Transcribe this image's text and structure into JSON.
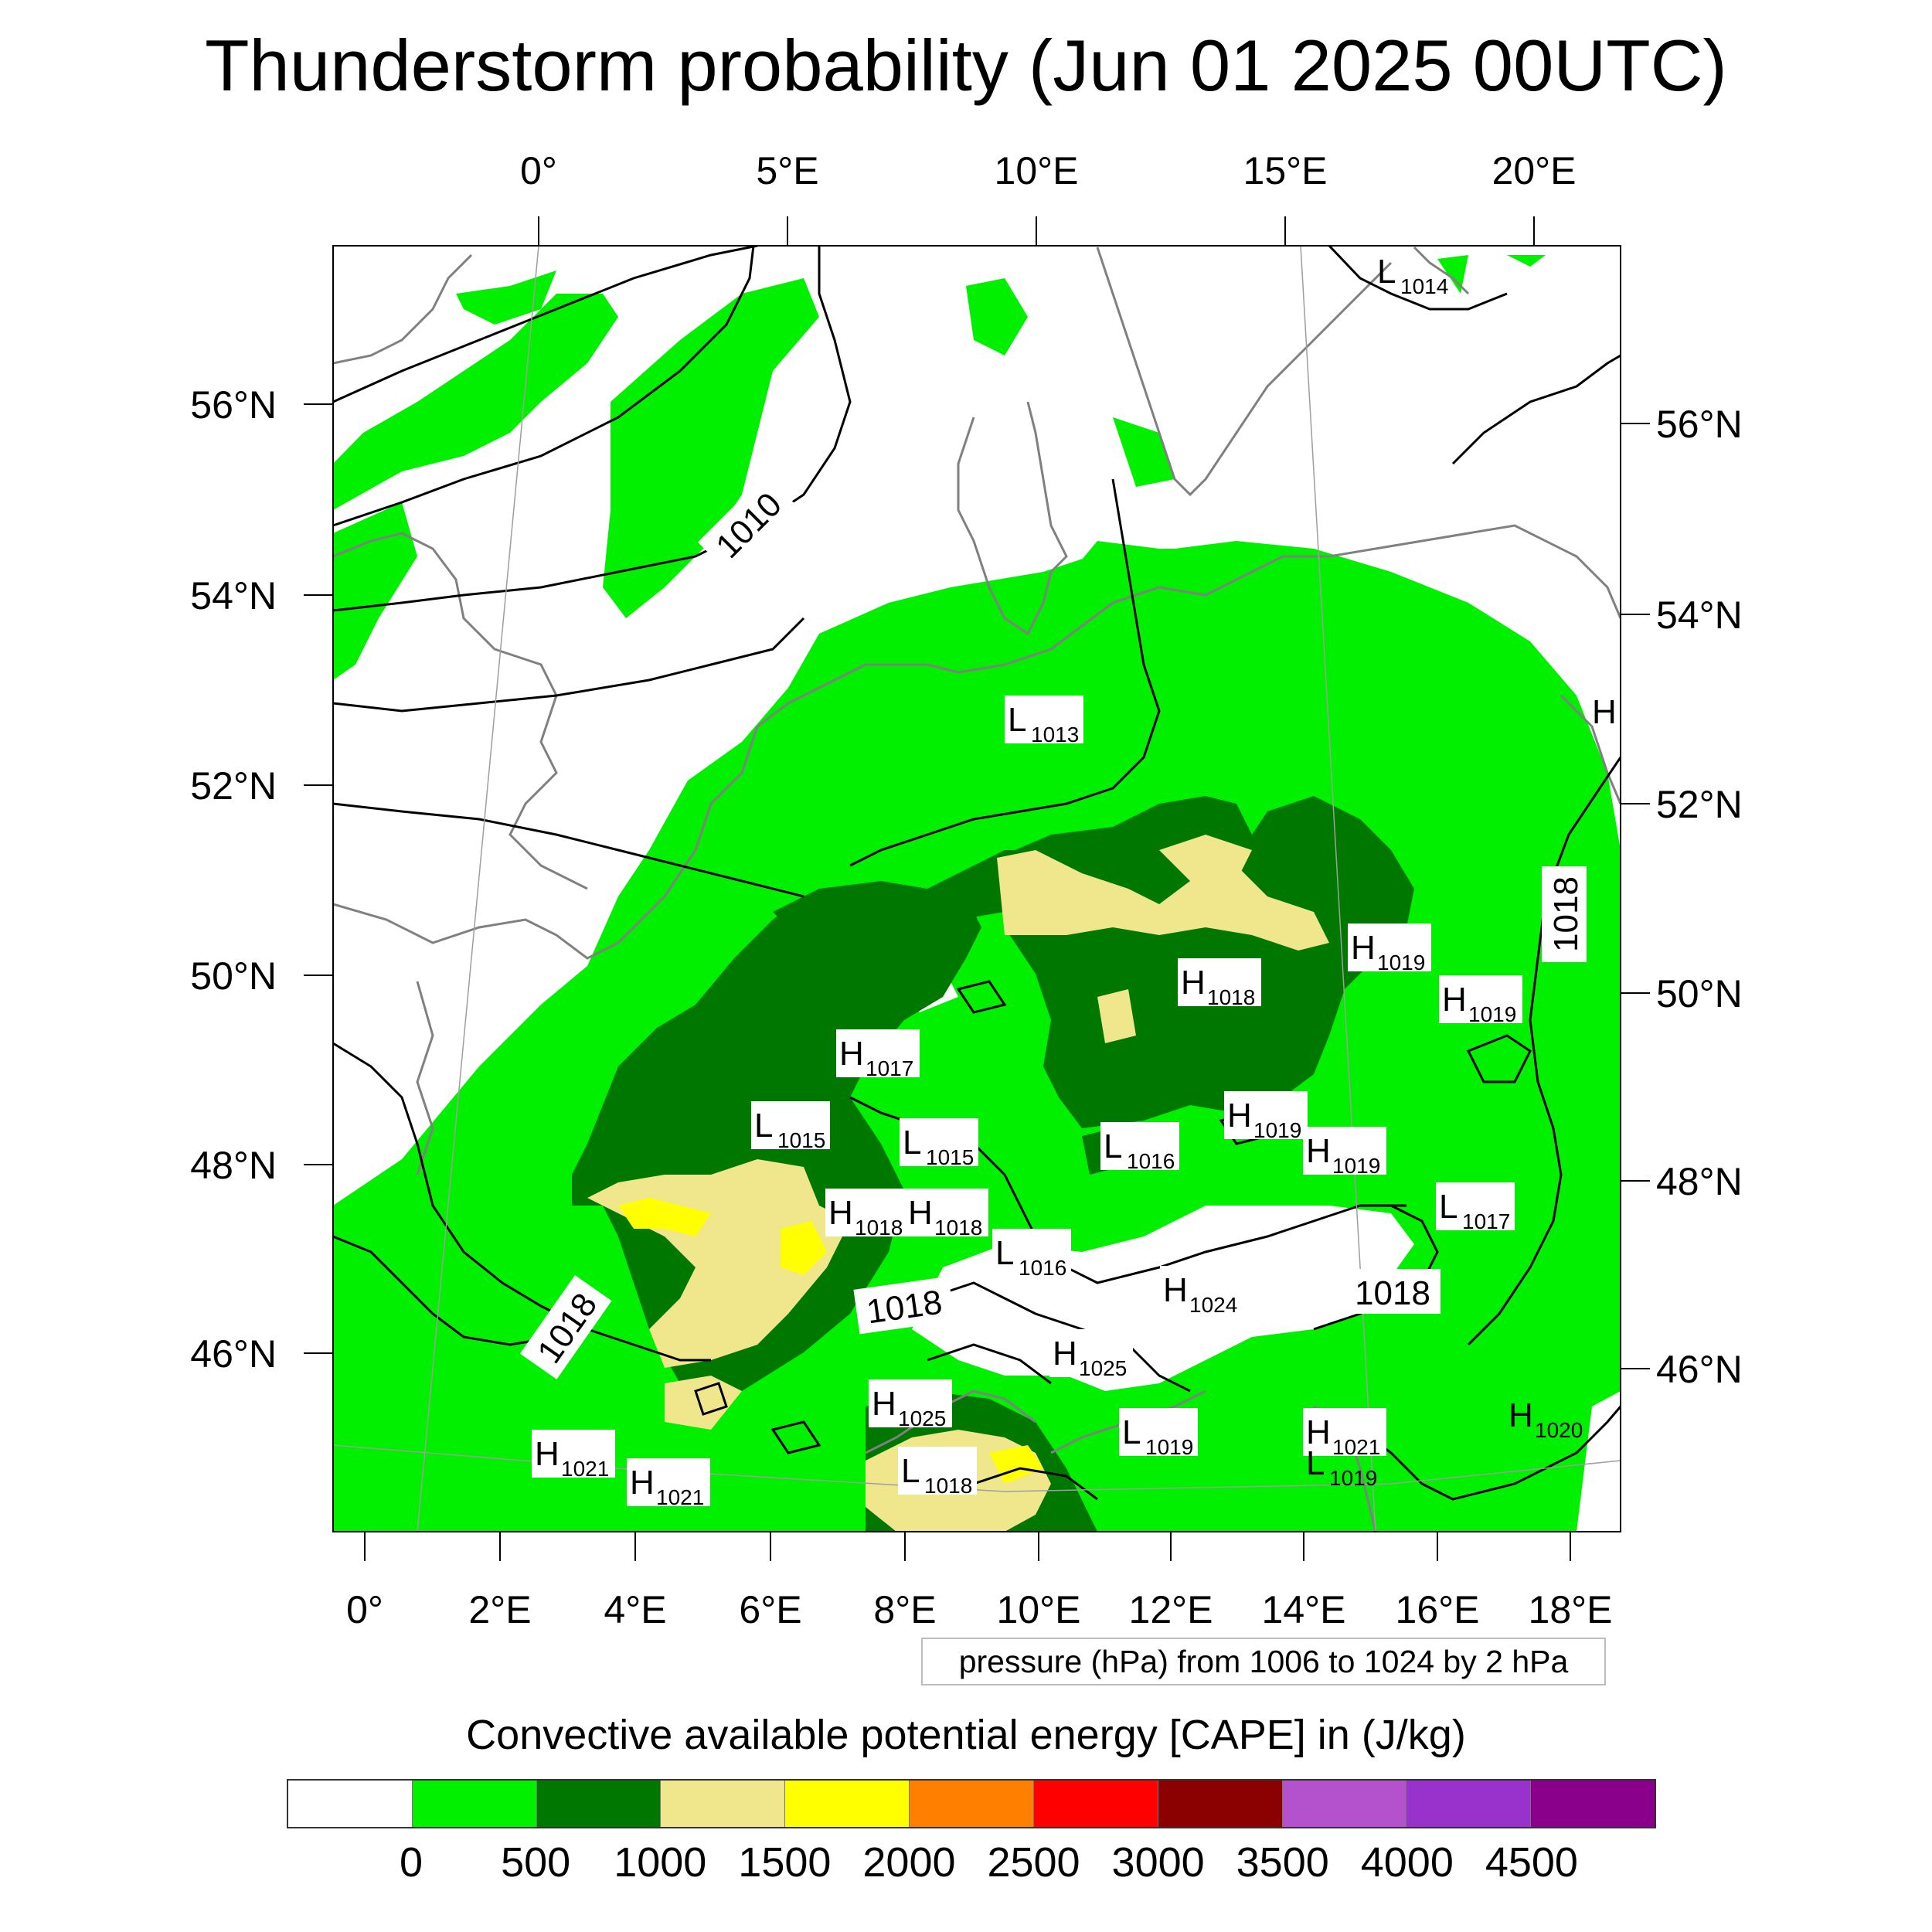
{
  "title": "Thunderstorm probability (Jun 01 2025 00UTC)",
  "map": {
    "top_lon_labels": [
      "0°",
      "5°E",
      "10°E",
      "15°E",
      "20°E"
    ],
    "bottom_lon_labels": [
      "0°",
      "2°E",
      "4°E",
      "6°E",
      "8°E",
      "10°E",
      "12°E",
      "14°E",
      "16°E",
      "18°E"
    ],
    "left_lat_labels": [
      "56°N",
      "54°N",
      "52°N",
      "50°N",
      "48°N",
      "46°N"
    ],
    "right_lat_labels": [
      "56°N",
      "54°N",
      "52°N",
      "50°N",
      "48°N",
      "46°N"
    ],
    "isobar_labels": [
      "1010",
      "1018",
      "1018",
      "1018",
      "1018"
    ],
    "pressure_centers": [
      {
        "type": "L",
        "value": "1014"
      },
      {
        "type": "L",
        "value": "1013"
      },
      {
        "type": "H",
        "value": "1019"
      },
      {
        "type": "H",
        "value": "1018"
      },
      {
        "type": "H",
        "value": "1019"
      },
      {
        "type": "H",
        "value": "1017"
      },
      {
        "type": "L",
        "value": "1015"
      },
      {
        "type": "L",
        "value": "1015"
      },
      {
        "type": "L",
        "value": "1016"
      },
      {
        "type": "H",
        "value": "1019"
      },
      {
        "type": "H",
        "value": "1019"
      },
      {
        "type": "H",
        "value": "1018"
      },
      {
        "type": "H",
        "value": "1018"
      },
      {
        "type": "L",
        "value": "1016"
      },
      {
        "type": "L",
        "value": "1017"
      },
      {
        "type": "H",
        "value": "1024"
      },
      {
        "type": "H",
        "value": "1025"
      },
      {
        "type": "H",
        "value": "1025"
      },
      {
        "type": "L",
        "value": "1019"
      },
      {
        "type": "H",
        "value": "1021"
      },
      {
        "type": "L",
        "value": "1019"
      },
      {
        "type": "L",
        "value": "1018"
      },
      {
        "type": "H",
        "value": "1021"
      },
      {
        "type": "H",
        "value": "1021"
      },
      {
        "type": "H",
        "value": "1020"
      },
      {
        "type": "H",
        "value": ""
      }
    ],
    "colors": {
      "cape_0_500": "#00f000",
      "cape_500_1000": "#007800",
      "cape_1000_1500": "#f0e68c",
      "cape_1500_2000": "#ffff00",
      "isobar": "#000000",
      "coastline": "#808080"
    }
  },
  "contour_note": "pressure (hPa) from 1006 to 1024 by 2 hPa",
  "colorbar": {
    "title": "Convective available potential energy [CAPE] in (J/kg)",
    "colors": [
      "#ffffff",
      "#00f000",
      "#007800",
      "#f0e68c",
      "#ffff00",
      "#ff8000",
      "#ff0000",
      "#8b0000",
      "#b452cd",
      "#9932cc",
      "#8b008b"
    ],
    "ticks": [
      "0",
      "500",
      "1000",
      "1500",
      "2000",
      "2500",
      "3000",
      "3500",
      "4000",
      "4500"
    ]
  }
}
